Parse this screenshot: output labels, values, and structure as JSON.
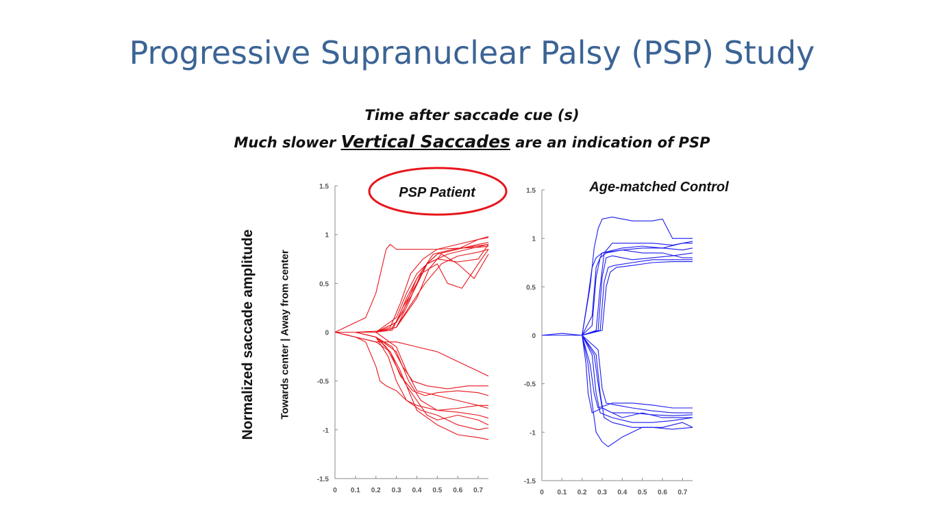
{
  "title": "Progressive Supranuclear Palsy (PSP) Study",
  "subtitle_line1": "Time after saccade cue (s)",
  "subtitle_line2": {
    "before": "Much slower ",
    "emphasis": "Vertical Saccades",
    "after": " are an indication of PSP"
  },
  "ylabel_outer": "Normalized saccade amplitude",
  "ylabel_inner": "Towards center | Away from center",
  "chart_data": [
    {
      "type": "line",
      "title": "PSP Patient",
      "color": "#e8141b",
      "title_circled": true,
      "xlim": [
        0,
        0.75
      ],
      "ylim": [
        -1.5,
        1.5
      ],
      "xticks": [
        "0",
        "0.1",
        "0.2",
        "0.3",
        "0.4",
        "0.5",
        "0.6",
        "0.7"
      ],
      "yticks": [
        "1.5",
        "1",
        "0.5",
        "0",
        "-0.5",
        "-1",
        "-1.5"
      ],
      "series": [
        {
          "x": [
            0,
            0.1,
            0.15,
            0.2,
            0.25,
            0.27,
            0.3,
            0.4,
            0.5,
            0.6,
            0.7,
            0.75
          ],
          "y": [
            0,
            0.1,
            0.15,
            0.4,
            0.85,
            0.9,
            0.85,
            0.85,
            0.85,
            0.86,
            0.87,
            0.88
          ]
        },
        {
          "x": [
            0,
            0.1,
            0.2,
            0.27,
            0.32,
            0.37,
            0.43,
            0.5,
            0.6,
            0.7,
            0.75
          ],
          "y": [
            0,
            0,
            0,
            0.05,
            0.3,
            0.6,
            0.75,
            0.85,
            0.9,
            0.95,
            0.97
          ]
        },
        {
          "x": [
            0,
            0.1,
            0.2,
            0.28,
            0.33,
            0.4,
            0.45,
            0.55,
            0.65,
            0.75
          ],
          "y": [
            0,
            0,
            0.01,
            0.02,
            0.25,
            0.5,
            0.7,
            0.8,
            0.85,
            0.9
          ]
        },
        {
          "x": [
            0,
            0.1,
            0.2,
            0.3,
            0.35,
            0.4,
            0.45,
            0.5,
            0.6,
            0.7,
            0.75
          ],
          "y": [
            0,
            0,
            0,
            0.1,
            0.35,
            0.55,
            0.7,
            0.8,
            0.85,
            0.9,
            0.92
          ]
        },
        {
          "x": [
            0,
            0.1,
            0.2,
            0.3,
            0.36,
            0.42,
            0.5,
            0.55,
            0.62,
            0.7,
            0.75
          ],
          "y": [
            0,
            0,
            0,
            0.05,
            0.3,
            0.6,
            0.7,
            0.5,
            0.45,
            0.7,
            0.85
          ]
        },
        {
          "x": [
            0,
            0.1,
            0.2,
            0.3,
            0.38,
            0.45,
            0.5,
            0.6,
            0.7,
            0.75
          ],
          "y": [
            0,
            0,
            0,
            0.1,
            0.4,
            0.7,
            0.75,
            0.72,
            0.75,
            0.9
          ]
        },
        {
          "x": [
            0,
            0.1,
            0.2,
            0.3,
            0.4,
            0.46,
            0.52,
            0.6,
            0.68,
            0.75
          ],
          "y": [
            0,
            0,
            0,
            0.05,
            0.35,
            0.65,
            0.8,
            0.7,
            0.55,
            0.8
          ]
        },
        {
          "x": [
            0,
            0.1,
            0.2,
            0.3,
            0.35,
            0.4,
            0.5,
            0.6,
            0.7,
            0.75
          ],
          "y": [
            0,
            0,
            0,
            0.15,
            0.4,
            0.6,
            0.8,
            0.85,
            0.95,
            0.98
          ]
        },
        {
          "x": [
            0,
            0.1,
            0.2,
            0.3,
            0.36,
            0.44,
            0.52,
            0.6,
            0.7,
            0.75
          ],
          "y": [
            0,
            0,
            0,
            0.05,
            0.25,
            0.5,
            0.7,
            0.78,
            0.82,
            0.85
          ]
        },
        {
          "x": [
            0,
            0.1,
            0.2,
            0.27,
            0.33,
            0.4,
            0.48,
            0.58,
            0.68,
            0.75
          ],
          "y": [
            0,
            0,
            0,
            0.02,
            0.2,
            0.55,
            0.8,
            0.85,
            0.88,
            0.9
          ]
        },
        {
          "x": [
            0,
            0.1,
            0.2,
            0.3,
            0.4,
            0.5,
            0.6,
            0.7,
            0.75
          ],
          "y": [
            0,
            -0.05,
            -0.1,
            -0.1,
            -0.15,
            -0.2,
            -0.3,
            -0.4,
            -0.45
          ]
        },
        {
          "x": [
            0,
            0.1,
            0.15,
            0.2,
            0.22,
            0.25,
            0.3,
            0.35,
            0.4,
            0.5,
            0.6,
            0.7,
            0.75
          ],
          "y": [
            0,
            -0.05,
            -0.1,
            -0.35,
            -0.5,
            -0.55,
            -0.6,
            -0.7,
            -0.75,
            -0.8,
            -0.78,
            -0.75,
            -0.75
          ]
        },
        {
          "x": [
            0,
            0.1,
            0.2,
            0.27,
            0.32,
            0.36,
            0.4,
            0.5,
            0.6,
            0.7,
            0.75
          ],
          "y": [
            0,
            -0.05,
            -0.1,
            -0.2,
            -0.4,
            -0.6,
            -0.8,
            -0.95,
            -1.05,
            -1.08,
            -1.1
          ]
        },
        {
          "x": [
            0,
            0.1,
            0.2,
            0.28,
            0.33,
            0.38,
            0.45,
            0.55,
            0.65,
            0.75
          ],
          "y": [
            0,
            0,
            -0.05,
            -0.15,
            -0.35,
            -0.5,
            -0.55,
            -0.58,
            -0.55,
            -0.55
          ]
        },
        {
          "x": [
            0,
            0.1,
            0.2,
            0.3,
            0.35,
            0.4,
            0.5,
            0.6,
            0.7,
            0.75
          ],
          "y": [
            0,
            0,
            0,
            -0.15,
            -0.4,
            -0.6,
            -0.65,
            -0.7,
            -0.75,
            -0.78
          ]
        },
        {
          "x": [
            0,
            0.1,
            0.2,
            0.25,
            0.3,
            0.35,
            0.4,
            0.45,
            0.5,
            0.6,
            0.7,
            0.75
          ],
          "y": [
            0,
            0,
            -0.05,
            -0.15,
            -0.35,
            -0.55,
            -0.7,
            -0.85,
            -0.9,
            -0.85,
            -0.9,
            -0.95
          ]
        },
        {
          "x": [
            0,
            0.1,
            0.2,
            0.27,
            0.32,
            0.38,
            0.44,
            0.5,
            0.6,
            0.7,
            0.75
          ],
          "y": [
            0,
            0,
            -0.05,
            -0.2,
            -0.45,
            -0.6,
            -0.65,
            -0.62,
            -0.6,
            -0.62,
            -0.65
          ]
        },
        {
          "x": [
            0,
            0.1,
            0.2,
            0.3,
            0.36,
            0.42,
            0.5,
            0.6,
            0.7,
            0.75
          ],
          "y": [
            0,
            0,
            -0.05,
            -0.2,
            -0.5,
            -0.7,
            -0.8,
            -0.82,
            -0.85,
            -0.88
          ]
        },
        {
          "x": [
            0,
            0.1,
            0.2,
            0.26,
            0.3,
            0.35,
            0.42,
            0.5,
            0.6,
            0.7,
            0.75
          ],
          "y": [
            0,
            0,
            -0.05,
            -0.25,
            -0.5,
            -0.7,
            -0.8,
            -0.85,
            -0.95,
            -1.0,
            -0.98
          ]
        }
      ]
    },
    {
      "type": "line",
      "title": "Age-matched Control",
      "color": "#1a1aee",
      "title_circled": false,
      "xlim": [
        0,
        0.75
      ],
      "ylim": [
        -1.5,
        1.5
      ],
      "xticks": [
        "0",
        "0.1",
        "0.2",
        "0.3",
        "0.4",
        "0.5",
        "0.6",
        "0.7"
      ],
      "yticks": [
        "1.5",
        "1",
        "0.5",
        "0",
        "-0.5",
        "-1",
        "-1.5"
      ],
      "series": [
        {
          "x": [
            0,
            0.1,
            0.2,
            0.23,
            0.25,
            0.27,
            0.3,
            0.4,
            0.5,
            0.6,
            0.7,
            0.75
          ],
          "y": [
            0,
            0,
            0,
            0.4,
            0.7,
            0.8,
            0.85,
            0.88,
            0.9,
            0.9,
            0.88,
            0.9
          ]
        },
        {
          "x": [
            0,
            0.1,
            0.2,
            0.24,
            0.26,
            0.28,
            0.3,
            0.35,
            0.45,
            0.55,
            0.6,
            0.65,
            0.75
          ],
          "y": [
            0,
            0,
            0,
            0.5,
            0.9,
            1.1,
            1.2,
            1.22,
            1.18,
            1.18,
            1.2,
            1.0,
            1.0
          ]
        },
        {
          "x": [
            0,
            0.1,
            0.2,
            0.25,
            0.27,
            0.3,
            0.4,
            0.5,
            0.6,
            0.7,
            0.75
          ],
          "y": [
            0,
            0.02,
            0,
            0.2,
            0.7,
            0.85,
            0.9,
            0.92,
            0.9,
            0.95,
            0.95
          ]
        },
        {
          "x": [
            0,
            0.1,
            0.2,
            0.25,
            0.27,
            0.29,
            0.32,
            0.4,
            0.5,
            0.6,
            0.7,
            0.75
          ],
          "y": [
            0,
            0,
            0,
            0.1,
            0.6,
            0.8,
            0.85,
            0.88,
            0.85,
            0.85,
            0.8,
            0.8
          ]
        },
        {
          "x": [
            0,
            0.1,
            0.2,
            0.27,
            0.29,
            0.31,
            0.35,
            0.45,
            0.55,
            0.65,
            0.75
          ],
          "y": [
            0,
            0,
            0,
            0.05,
            0.5,
            0.85,
            0.95,
            0.95,
            0.95,
            0.93,
            0.97
          ]
        },
        {
          "x": [
            0,
            0.1,
            0.2,
            0.28,
            0.3,
            0.32,
            0.35,
            0.45,
            0.55,
            0.65,
            0.75
          ],
          "y": [
            0,
            0,
            0,
            0.05,
            0.6,
            0.8,
            0.82,
            0.78,
            0.8,
            0.82,
            0.85
          ]
        },
        {
          "x": [
            0,
            0.1,
            0.2,
            0.29,
            0.31,
            0.33,
            0.36,
            0.45,
            0.55,
            0.65,
            0.75
          ],
          "y": [
            0,
            0,
            0,
            0.05,
            0.55,
            0.7,
            0.72,
            0.75,
            0.78,
            0.78,
            0.78
          ]
        },
        {
          "x": [
            0,
            0.1,
            0.2,
            0.3,
            0.32,
            0.34,
            0.37,
            0.45,
            0.55,
            0.65,
            0.75
          ],
          "y": [
            0,
            0,
            0,
            0.05,
            0.5,
            0.65,
            0.7,
            0.72,
            0.75,
            0.76,
            0.76
          ]
        },
        {
          "x": [
            0,
            0.1,
            0.2,
            0.22,
            0.23,
            0.25,
            0.3,
            0.4,
            0.5,
            0.6,
            0.7,
            0.75
          ],
          "y": [
            0,
            0,
            0,
            -0.3,
            -0.6,
            -0.8,
            -0.75,
            -0.85,
            -0.8,
            -0.85,
            -0.85,
            -0.85
          ]
        },
        {
          "x": [
            0,
            0.1,
            0.2,
            0.23,
            0.25,
            0.27,
            0.3,
            0.33,
            0.4,
            0.5,
            0.6,
            0.7,
            0.75
          ],
          "y": [
            0,
            0,
            0,
            -0.3,
            -0.7,
            -1.0,
            -1.1,
            -1.15,
            -1.05,
            -0.95,
            -0.95,
            -0.9,
            -0.95
          ]
        },
        {
          "x": [
            0,
            0.1,
            0.2,
            0.24,
            0.26,
            0.28,
            0.35,
            0.45,
            0.55,
            0.65,
            0.75
          ],
          "y": [
            0,
            0,
            0,
            -0.3,
            -0.6,
            -0.75,
            -0.7,
            -0.7,
            -0.72,
            -0.75,
            -0.75
          ]
        },
        {
          "x": [
            0,
            0.1,
            0.2,
            0.25,
            0.27,
            0.29,
            0.35,
            0.45,
            0.55,
            0.65,
            0.75
          ],
          "y": [
            0,
            0,
            0,
            -0.2,
            -0.6,
            -0.8,
            -0.85,
            -0.9,
            -0.9,
            -0.88,
            -0.85
          ]
        },
        {
          "x": [
            0,
            0.1,
            0.2,
            0.26,
            0.28,
            0.3,
            0.35,
            0.45,
            0.55,
            0.65,
            0.75
          ],
          "y": [
            0,
            0,
            0,
            -0.2,
            -0.5,
            -0.75,
            -0.8,
            -0.8,
            -0.82,
            -0.83,
            -0.82
          ]
        },
        {
          "x": [
            0,
            0.1,
            0.2,
            0.27,
            0.29,
            0.31,
            0.35,
            0.45,
            0.55,
            0.65,
            0.75
          ],
          "y": [
            0,
            0,
            0,
            -0.2,
            -0.6,
            -0.85,
            -0.9,
            -0.95,
            -0.95,
            -0.97,
            -0.95
          ]
        },
        {
          "x": [
            0,
            0.1,
            0.2,
            0.28,
            0.3,
            0.32,
            0.37,
            0.45,
            0.55,
            0.65,
            0.75
          ],
          "y": [
            0,
            0,
            0,
            -0.15,
            -0.55,
            -0.7,
            -0.72,
            -0.75,
            -0.78,
            -0.8,
            -0.8
          ]
        }
      ]
    }
  ]
}
